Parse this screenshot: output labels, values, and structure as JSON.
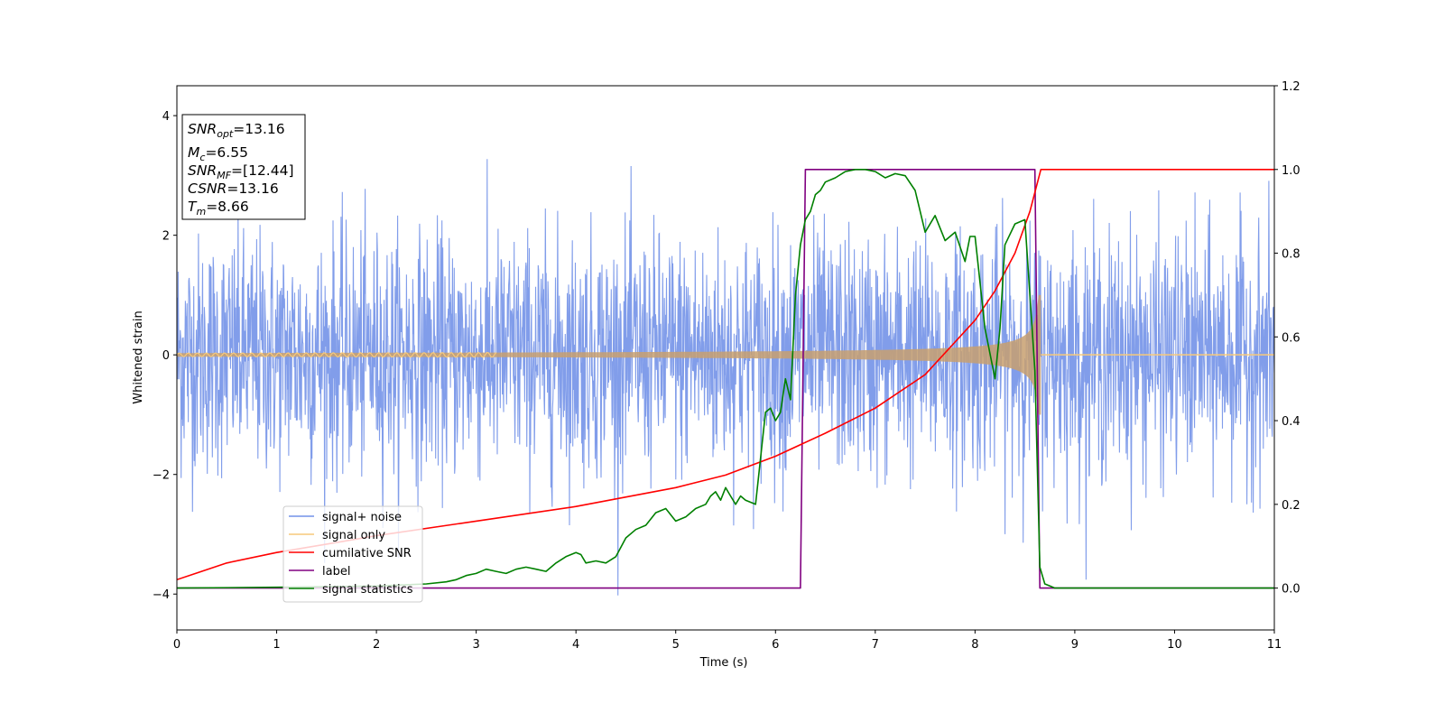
{
  "chart_data": {
    "type": "line",
    "title": "",
    "xlabel": "Time (s)",
    "ylabel": "Whitened strain",
    "xlim": [
      0,
      11
    ],
    "ylim_left": [
      -4.6,
      4.5
    ],
    "ylim_right": [
      -0.1,
      1.2
    ],
    "x_ticks": [
      "0",
      "1",
      "2",
      "3",
      "4",
      "5",
      "6",
      "7",
      "8",
      "9",
      "10",
      "11"
    ],
    "y_ticks_left": [
      "−4",
      "−2",
      "0",
      "2",
      "4"
    ],
    "y_ticks_right": [
      "0.0",
      "0.2",
      "0.4",
      "0.6",
      "0.8",
      "1.0",
      "1.2"
    ],
    "grid": false,
    "legend_position": "lower-left",
    "info_box": {
      "snr_opt": {
        "var": "SNR",
        "sub": "opt",
        "value": "=13.16"
      },
      "mc": {
        "var": "M",
        "sub": "c",
        "value": "=6.55"
      },
      "snr_mf": {
        "var": "SNR",
        "sub": "MF",
        "value": "=[12.44]"
      },
      "csnr": {
        "var": "CSNR",
        "sub": "",
        "value": "=13.16"
      },
      "tm": {
        "var": "T",
        "sub": "m",
        "value": "=8.66"
      }
    },
    "series": [
      {
        "name": "signal+ noise",
        "color": "#7392e8",
        "axis": "left",
        "description_values": {
          "noise_std": 1.0,
          "noise_peak_abs": 4.1,
          "x_range": [
            0,
            11
          ]
        }
      },
      {
        "name": "signal only",
        "color": "#f7c97a",
        "axis": "left",
        "chirp": {
          "start_time": 0.0,
          "merger_time": 8.66,
          "start_amplitude": 0.05,
          "peak_amplitude": 1.0
        }
      },
      {
        "name": "cumilative SNR",
        "color": "#ff0000",
        "axis": "right",
        "x": [
          0,
          0.5,
          1,
          2,
          3,
          4,
          5,
          5.5,
          6,
          6.5,
          7,
          7.5,
          8,
          8.2,
          8.4,
          8.55,
          8.66,
          11
        ],
        "y": [
          0.02,
          0.06,
          0.085,
          0.125,
          0.16,
          0.195,
          0.24,
          0.27,
          0.315,
          0.37,
          0.43,
          0.51,
          0.64,
          0.71,
          0.8,
          0.9,
          1.0,
          1.0
        ]
      },
      {
        "name": "label",
        "color": "#800080",
        "axis": "right",
        "x": [
          0,
          6.25,
          6.3,
          8.6,
          8.65,
          11
        ],
        "y": [
          0,
          0,
          1,
          1,
          0,
          0
        ]
      },
      {
        "name": "signal statistics",
        "color": "#008000",
        "axis": "right",
        "x": [
          0,
          1,
          2,
          2.5,
          2.7,
          2.8,
          2.9,
          3.0,
          3.1,
          3.2,
          3.3,
          3.4,
          3.5,
          3.6,
          3.7,
          3.8,
          3.9,
          4.0,
          4.05,
          4.1,
          4.2,
          4.3,
          4.4,
          4.5,
          4.6,
          4.7,
          4.8,
          4.9,
          5.0,
          5.1,
          5.2,
          5.3,
          5.35,
          5.4,
          5.45,
          5.5,
          5.55,
          5.6,
          5.65,
          5.7,
          5.8,
          5.9,
          5.95,
          6.0,
          6.05,
          6.1,
          6.15,
          6.2,
          6.25,
          6.3,
          6.35,
          6.4,
          6.45,
          6.5,
          6.6,
          6.7,
          6.8,
          6.9,
          7.0,
          7.1,
          7.2,
          7.3,
          7.4,
          7.5,
          7.6,
          7.7,
          7.8,
          7.9,
          7.95,
          8.0,
          8.1,
          8.2,
          8.25,
          8.3,
          8.4,
          8.5,
          8.6,
          8.65,
          8.7,
          8.75,
          8.8,
          8.9,
          11
        ],
        "y": [
          0,
          0.002,
          0.005,
          0.01,
          0.015,
          0.02,
          0.03,
          0.035,
          0.045,
          0.04,
          0.035,
          0.045,
          0.05,
          0.045,
          0.04,
          0.06,
          0.075,
          0.085,
          0.08,
          0.06,
          0.065,
          0.06,
          0.075,
          0.12,
          0.14,
          0.15,
          0.18,
          0.19,
          0.16,
          0.17,
          0.19,
          0.2,
          0.22,
          0.23,
          0.21,
          0.24,
          0.22,
          0.2,
          0.22,
          0.21,
          0.2,
          0.42,
          0.43,
          0.4,
          0.42,
          0.5,
          0.45,
          0.7,
          0.82,
          0.88,
          0.9,
          0.94,
          0.95,
          0.97,
          0.98,
          0.995,
          1.0,
          1.0,
          0.995,
          0.98,
          0.99,
          0.985,
          0.95,
          0.85,
          0.89,
          0.83,
          0.85,
          0.78,
          0.84,
          0.84,
          0.62,
          0.5,
          0.62,
          0.82,
          0.87,
          0.88,
          0.52,
          0.05,
          0.01,
          0.005,
          0.0,
          0.0,
          0.0
        ]
      }
    ]
  }
}
